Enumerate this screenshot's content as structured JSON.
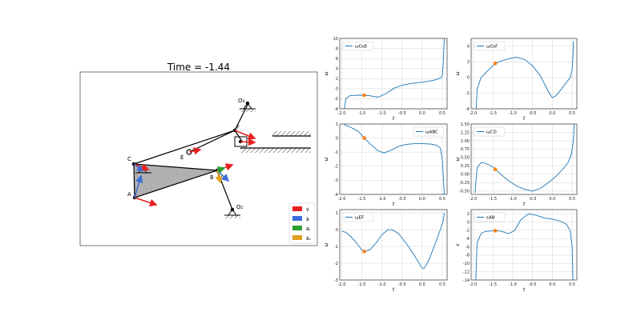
{
  "mechanism": {
    "time_title": "Time = -1.44",
    "points": [
      {
        "id": "A",
        "label": "A"
      },
      {
        "id": "B",
        "label": "B"
      },
      {
        "id": "C",
        "label": "C"
      },
      {
        "id": "E",
        "label": "E"
      },
      {
        "id": "F",
        "label": "F"
      },
      {
        "id": "O2",
        "label": "O₂"
      },
      {
        "id": "O3",
        "label": "O₃"
      }
    ],
    "legend": [
      {
        "label": "v⃗",
        "color": "#e82020",
        "icon": "arrow-right-icon"
      },
      {
        "label": "a⃗",
        "color": "#3a6fdb",
        "icon": "arrow-right-icon"
      },
      {
        "label": "a⃗ₜ",
        "color": "#2ca02c",
        "icon": "arrow-right-icon"
      },
      {
        "label": "a⃗ₙ",
        "color": "#e0a020",
        "icon": "arrow-right-icon"
      }
    ]
  },
  "colors": {
    "curve": "#1f77b4",
    "marker": "#ff7f0e",
    "link_fill": "#b0b0b0",
    "ground": "#000000"
  },
  "chart_data": [
    {
      "type": "line",
      "legend": "ωO₃B",
      "xlabel": "t",
      "ylabel": "ω",
      "xlim": [
        -2.05,
        0.62
      ],
      "ylim": [
        -4,
        10
      ],
      "xticks": [
        -2.0,
        -1.5,
        -1.0,
        -0.5,
        0.0,
        0.5
      ],
      "yticks": [
        -4,
        -2,
        0,
        2,
        4,
        6,
        8,
        10
      ],
      "x": [
        -1.93,
        -1.9,
        -1.8,
        -1.7,
        -1.6,
        -1.5,
        -1.44,
        -1.3,
        -1.1,
        -0.9,
        -0.7,
        -0.5,
        -0.3,
        -0.1,
        0.1,
        0.3,
        0.45,
        0.5,
        0.52,
        0.54,
        0.55
      ],
      "y": [
        -4,
        -2.0,
        -1.4,
        -1.35,
        -1.3,
        -1.3,
        -1.3,
        -1.4,
        -1.7,
        -1.0,
        0.1,
        0.7,
        1.0,
        1.2,
        1.4,
        1.7,
        2.1,
        2.6,
        4.5,
        8,
        10
      ],
      "marker": {
        "x": -1.44,
        "y": -1.3
      },
      "legend_pos": "top-left"
    },
    {
      "type": "line",
      "legend": "ωO₃F",
      "xlabel": "t",
      "ylabel": "ω",
      "xlim": [
        -2.05,
        0.62
      ],
      "ylim": [
        -4,
        5
      ],
      "xticks": [
        -2.0,
        -1.5,
        -1.0,
        -0.5,
        0.0,
        0.5
      ],
      "yticks": [
        -4,
        -2,
        0,
        2,
        4
      ],
      "x": [
        -1.92,
        -1.9,
        -1.8,
        -1.7,
        -1.6,
        -1.5,
        -1.44,
        -1.3,
        -1.1,
        -0.9,
        -0.7,
        -0.5,
        -0.3,
        -0.1,
        0.0,
        0.1,
        0.3,
        0.45,
        0.5,
        0.52,
        0.53
      ],
      "y": [
        -4,
        -1.5,
        0.0,
        0.5,
        1.0,
        1.5,
        1.8,
        2.1,
        2.4,
        2.6,
        2.3,
        1.5,
        0.2,
        -1.8,
        -2.6,
        -2.3,
        -1.0,
        0.0,
        1.0,
        2.8,
        4.6
      ],
      "marker": {
        "x": -1.44,
        "y": 1.8
      },
      "legend_pos": "top-left"
    },
    {
      "type": "line",
      "legend": "ωABC",
      "xlabel": "t",
      "ylabel": "ω",
      "xlim": [
        -2.05,
        0.62
      ],
      "ylim": [
        -4,
        1
      ],
      "xticks": [
        -2.0,
        -1.5,
        -1.0,
        -0.5,
        0.0,
        0.5
      ],
      "yticks": [
        -4,
        -3,
        -2,
        -1,
        0,
        1
      ],
      "x": [
        -1.95,
        -1.9,
        -1.8,
        -1.7,
        -1.6,
        -1.5,
        -1.44,
        -1.3,
        -1.1,
        -0.95,
        -0.8,
        -0.6,
        -0.4,
        -0.2,
        0.0,
        0.2,
        0.35,
        0.45,
        0.5,
        0.53,
        0.55
      ],
      "y": [
        1.0,
        0.9,
        0.8,
        0.65,
        0.5,
        0.2,
        0.0,
        -0.4,
        -0.9,
        -1.05,
        -0.9,
        -0.6,
        -0.45,
        -0.4,
        -0.4,
        -0.42,
        -0.5,
        -0.7,
        -1.5,
        -3.0,
        -4.0
      ],
      "marker": {
        "x": -1.44,
        "y": 0.0
      },
      "legend_pos": "top-right"
    },
    {
      "type": "line",
      "legend": "ωCD",
      "xlabel": "t",
      "ylabel": "ω",
      "xlim": [
        -2.05,
        0.62
      ],
      "ylim": [
        -0.6,
        1.5
      ],
      "xticks": [
        -2.0,
        -1.5,
        -1.0,
        -0.5,
        0.0,
        0.5
      ],
      "yticks": [
        -0.5,
        -0.25,
        0.0,
        0.25,
        0.5,
        0.75,
        1.0,
        1.25,
        1.5
      ],
      "x": [
        -1.95,
        -1.9,
        -1.8,
        -1.7,
        -1.6,
        -1.5,
        -1.44,
        -1.3,
        -1.1,
        -0.9,
        -0.7,
        -0.5,
        -0.3,
        -0.1,
        0.1,
        0.3,
        0.4,
        0.48,
        0.52,
        0.54,
        0.55
      ],
      "y": [
        -0.55,
        0.2,
        0.35,
        0.33,
        0.28,
        0.22,
        0.15,
        0.0,
        -0.2,
        -0.35,
        -0.45,
        -0.5,
        -0.42,
        -0.25,
        -0.05,
        0.2,
        0.35,
        0.6,
        0.9,
        1.2,
        1.5
      ],
      "marker": {
        "x": -1.44,
        "y": 0.15
      },
      "legend_pos": "top-left"
    },
    {
      "type": "line",
      "legend": "ωEF",
      "xlabel": "t",
      "ylabel": "ω",
      "xlim": [
        -2.05,
        0.62
      ],
      "ylim": [
        -3,
        1.2
      ],
      "xticks": [
        -2.0,
        -1.5,
        -1.0,
        -0.5,
        0.0,
        0.5
      ],
      "yticks": [
        -3,
        -2,
        -1,
        0,
        1
      ],
      "x": [
        -2.0,
        -1.9,
        -1.8,
        -1.7,
        -1.6,
        -1.5,
        -1.44,
        -1.3,
        -1.15,
        -1.0,
        -0.85,
        -0.75,
        -0.6,
        -0.4,
        -0.2,
        0.0,
        0.05,
        0.15,
        0.3,
        0.45,
        0.52,
        0.55
      ],
      "y": [
        -0.1,
        -0.15,
        -0.35,
        -0.6,
        -0.9,
        -1.2,
        -1.3,
        -1.2,
        -0.8,
        -0.3,
        0.0,
        0.0,
        -0.2,
        -0.8,
        -1.5,
        -2.3,
        -2.3,
        -1.9,
        -1.0,
        0.0,
        0.5,
        1.0
      ],
      "marker": {
        "x": -1.44,
        "y": -1.3
      },
      "legend_pos": "top-left"
    },
    {
      "type": "line",
      "legend": "εAB",
      "xlabel": "t",
      "ylabel": "ε",
      "xlim": [
        -2.05,
        0.62
      ],
      "ylim": [
        -14,
        3
      ],
      "xticks": [
        -2.0,
        -1.5,
        -1.0,
        -0.5,
        0.0,
        0.5
      ],
      "yticks": [
        -14,
        -12,
        -10,
        -8,
        -6,
        -4,
        -2,
        0,
        2
      ],
      "x": [
        -1.93,
        -1.9,
        -1.8,
        -1.7,
        -1.6,
        -1.5,
        -1.44,
        -1.3,
        -1.1,
        -0.95,
        -0.8,
        -0.6,
        -0.4,
        -0.2,
        0.0,
        0.2,
        0.35,
        0.45,
        0.5,
        0.52
      ],
      "y": [
        -14,
        -5,
        -2.8,
        -2.3,
        -2.2,
        -2.1,
        -2.1,
        -2.2,
        -2.8,
        -2.0,
        0.5,
        2.0,
        1.6,
        1.0,
        0.7,
        0.2,
        -0.5,
        -2.0,
        -6,
        -14
      ],
      "marker": {
        "x": -1.44,
        "y": -2.1
      },
      "legend_pos": "top-left"
    }
  ]
}
